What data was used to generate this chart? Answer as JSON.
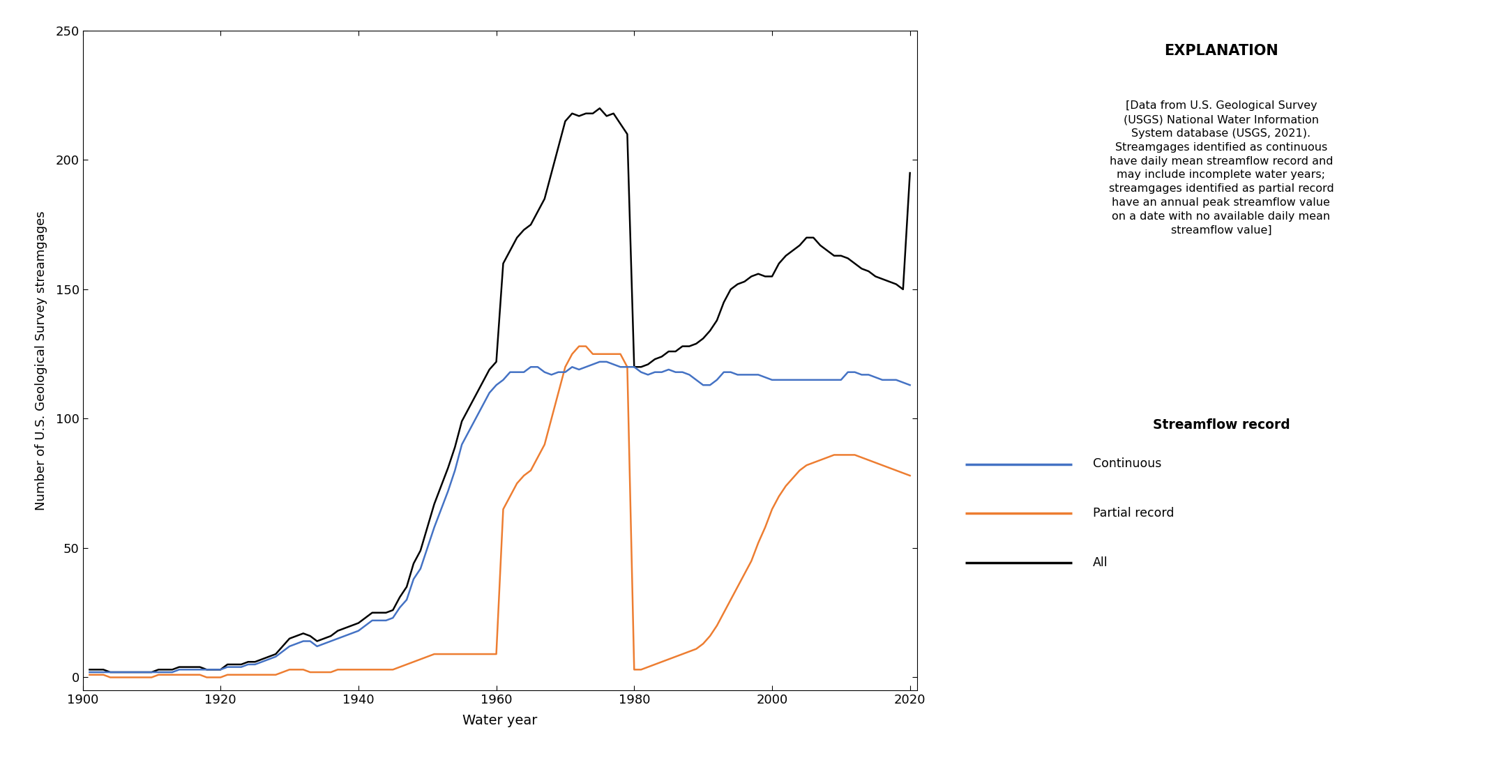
{
  "ylabel": "Number of U.S. Geological Survey streamgages",
  "xlabel": "Water year",
  "xlim": [
    1900,
    2021
  ],
  "ylim": [
    -5,
    250
  ],
  "yticks": [
    0,
    50,
    100,
    150,
    200,
    250
  ],
  "xticks": [
    1900,
    1920,
    1940,
    1960,
    1980,
    2000,
    2020
  ],
  "explanation_title": "EXPLANATION",
  "explanation_text": "[Data from U.S. Geological Survey\n(USGS) National Water Information\nSystem database (USGS, 2021).\nStreamgages identified as continuous\nhave daily mean streamflow record and\nmay include incomplete water years;\nstreamgages identified as partial record\nhave an annual peak streamflow value\non a date with no available daily mean\nstreamflow value]",
  "legend_title": "Streamflow record",
  "legend_items": [
    "Continuous",
    "Partial record",
    "All"
  ],
  "line_colors": [
    "#4472C4",
    "#ED7D31",
    "#000000"
  ],
  "continuous": {
    "years": [
      1901,
      1902,
      1903,
      1904,
      1905,
      1906,
      1907,
      1908,
      1909,
      1910,
      1911,
      1912,
      1913,
      1914,
      1915,
      1916,
      1917,
      1918,
      1919,
      1920,
      1921,
      1922,
      1923,
      1924,
      1925,
      1926,
      1927,
      1928,
      1929,
      1930,
      1931,
      1932,
      1933,
      1934,
      1935,
      1936,
      1937,
      1938,
      1939,
      1940,
      1941,
      1942,
      1943,
      1944,
      1945,
      1946,
      1947,
      1948,
      1949,
      1950,
      1951,
      1952,
      1953,
      1954,
      1955,
      1956,
      1957,
      1958,
      1959,
      1960,
      1961,
      1962,
      1963,
      1964,
      1965,
      1966,
      1967,
      1968,
      1969,
      1970,
      1971,
      1972,
      1973,
      1974,
      1975,
      1976,
      1977,
      1978,
      1979,
      1980,
      1981,
      1982,
      1983,
      1984,
      1985,
      1986,
      1987,
      1988,
      1989,
      1990,
      1991,
      1992,
      1993,
      1994,
      1995,
      1996,
      1997,
      1998,
      1999,
      2000,
      2001,
      2002,
      2003,
      2004,
      2005,
      2006,
      2007,
      2008,
      2009,
      2010,
      2011,
      2012,
      2013,
      2014,
      2015,
      2016,
      2017,
      2018,
      2019,
      2020
    ],
    "values": [
      2,
      2,
      2,
      2,
      2,
      2,
      2,
      2,
      2,
      2,
      2,
      2,
      2,
      3,
      3,
      3,
      3,
      3,
      3,
      3,
      4,
      4,
      4,
      5,
      5,
      6,
      7,
      8,
      10,
      12,
      13,
      14,
      14,
      12,
      13,
      14,
      15,
      16,
      17,
      18,
      20,
      22,
      22,
      22,
      23,
      27,
      30,
      38,
      42,
      50,
      58,
      65,
      72,
      80,
      90,
      95,
      100,
      105,
      110,
      113,
      115,
      118,
      118,
      118,
      120,
      120,
      118,
      117,
      118,
      118,
      120,
      119,
      120,
      121,
      122,
      122,
      121,
      120,
      120,
      120,
      118,
      117,
      118,
      118,
      119,
      118,
      118,
      117,
      115,
      113,
      113,
      115,
      118,
      118,
      117,
      117,
      117,
      117,
      116,
      115,
      115,
      115,
      115,
      115,
      115,
      115,
      115,
      115,
      115,
      115,
      118,
      118,
      117,
      117,
      116,
      115,
      115,
      115,
      114,
      113
    ]
  },
  "partial": {
    "years": [
      1901,
      1902,
      1903,
      1904,
      1905,
      1906,
      1907,
      1908,
      1909,
      1910,
      1911,
      1912,
      1913,
      1914,
      1915,
      1916,
      1917,
      1918,
      1919,
      1920,
      1921,
      1922,
      1923,
      1924,
      1925,
      1926,
      1927,
      1928,
      1929,
      1930,
      1931,
      1932,
      1933,
      1934,
      1935,
      1936,
      1937,
      1938,
      1939,
      1940,
      1941,
      1942,
      1943,
      1944,
      1945,
      1946,
      1947,
      1948,
      1949,
      1950,
      1951,
      1952,
      1953,
      1954,
      1955,
      1956,
      1957,
      1958,
      1959,
      1960,
      1961,
      1962,
      1963,
      1964,
      1965,
      1966,
      1967,
      1968,
      1969,
      1970,
      1971,
      1972,
      1973,
      1974,
      1975,
      1976,
      1977,
      1978,
      1979,
      1980,
      1981,
      1982,
      1983,
      1984,
      1985,
      1986,
      1987,
      1988,
      1989,
      1990,
      1991,
      1992,
      1993,
      1994,
      1995,
      1996,
      1997,
      1998,
      1999,
      2000,
      2001,
      2002,
      2003,
      2004,
      2005,
      2006,
      2007,
      2008,
      2009,
      2010,
      2011,
      2012,
      2013,
      2014,
      2015,
      2016,
      2017,
      2018,
      2019,
      2020
    ],
    "values": [
      1,
      1,
      1,
      0,
      0,
      0,
      0,
      0,
      0,
      0,
      1,
      1,
      1,
      1,
      1,
      1,
      1,
      0,
      0,
      0,
      1,
      1,
      1,
      1,
      1,
      1,
      1,
      1,
      2,
      3,
      3,
      3,
      2,
      2,
      2,
      2,
      3,
      3,
      3,
      3,
      3,
      3,
      3,
      3,
      3,
      4,
      5,
      6,
      7,
      8,
      9,
      9,
      9,
      9,
      9,
      9,
      9,
      9,
      9,
      9,
      65,
      70,
      75,
      78,
      80,
      85,
      90,
      100,
      110,
      120,
      125,
      128,
      128,
      125,
      125,
      125,
      125,
      125,
      120,
      3,
      3,
      4,
      5,
      6,
      7,
      8,
      9,
      10,
      11,
      13,
      16,
      20,
      25,
      30,
      35,
      40,
      45,
      52,
      58,
      65,
      70,
      74,
      77,
      80,
      82,
      83,
      84,
      85,
      86,
      86,
      86,
      86,
      85,
      84,
      83,
      82,
      81,
      80,
      79,
      78
    ]
  },
  "all": {
    "years": [
      1901,
      1902,
      1903,
      1904,
      1905,
      1906,
      1907,
      1908,
      1909,
      1910,
      1911,
      1912,
      1913,
      1914,
      1915,
      1916,
      1917,
      1918,
      1919,
      1920,
      1921,
      1922,
      1923,
      1924,
      1925,
      1926,
      1927,
      1928,
      1929,
      1930,
      1931,
      1932,
      1933,
      1934,
      1935,
      1936,
      1937,
      1938,
      1939,
      1940,
      1941,
      1942,
      1943,
      1944,
      1945,
      1946,
      1947,
      1948,
      1949,
      1950,
      1951,
      1952,
      1953,
      1954,
      1955,
      1956,
      1957,
      1958,
      1959,
      1960,
      1961,
      1962,
      1963,
      1964,
      1965,
      1966,
      1967,
      1968,
      1969,
      1970,
      1971,
      1972,
      1973,
      1974,
      1975,
      1976,
      1977,
      1978,
      1979,
      1980,
      1981,
      1982,
      1983,
      1984,
      1985,
      1986,
      1987,
      1988,
      1989,
      1990,
      1991,
      1992,
      1993,
      1994,
      1995,
      1996,
      1997,
      1998,
      1999,
      2000,
      2001,
      2002,
      2003,
      2004,
      2005,
      2006,
      2007,
      2008,
      2009,
      2010,
      2011,
      2012,
      2013,
      2014,
      2015,
      2016,
      2017,
      2018,
      2019,
      2020
    ],
    "values": [
      3,
      3,
      3,
      2,
      2,
      2,
      2,
      2,
      2,
      2,
      3,
      3,
      3,
      4,
      4,
      4,
      4,
      3,
      3,
      3,
      5,
      5,
      5,
      6,
      6,
      7,
      8,
      9,
      12,
      15,
      16,
      17,
      16,
      14,
      15,
      16,
      18,
      19,
      20,
      21,
      23,
      25,
      25,
      25,
      26,
      31,
      35,
      44,
      49,
      58,
      67,
      74,
      81,
      89,
      99,
      104,
      109,
      114,
      119,
      122,
      160,
      165,
      170,
      173,
      175,
      180,
      185,
      195,
      205,
      215,
      218,
      217,
      218,
      218,
      220,
      217,
      218,
      214,
      210,
      120,
      120,
      121,
      123,
      124,
      126,
      126,
      128,
      128,
      129,
      131,
      134,
      138,
      145,
      150,
      152,
      153,
      155,
      156,
      155,
      155,
      160,
      163,
      165,
      167,
      170,
      170,
      167,
      165,
      163,
      163,
      162,
      160,
      158,
      157,
      155,
      154,
      153,
      152,
      150,
      195
    ]
  }
}
